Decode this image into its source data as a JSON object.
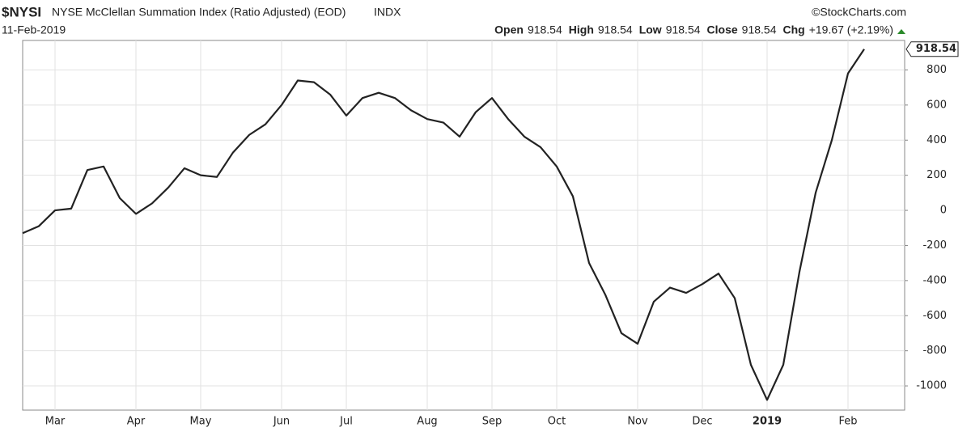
{
  "chart_data": {
    "type": "line",
    "symbol": "$NYSI",
    "title": "NYSE McClellan Summation Index (Ratio Adjusted) (EOD)",
    "exchange": "INDX",
    "credit": "©StockCharts.com",
    "date": "11-Feb-2019",
    "quote": [
      {
        "label": "Open",
        "value": 918.54
      },
      {
        "label": "High",
        "value": 918.54
      },
      {
        "label": "Low",
        "value": 918.54
      },
      {
        "label": "Close",
        "value": 918.54
      },
      {
        "label": "Chg",
        "value": "+19.67 (+2.19%)"
      }
    ],
    "categories": [
      null,
      null,
      "Mar",
      null,
      null,
      null,
      null,
      "Apr",
      null,
      null,
      null,
      "May",
      null,
      null,
      null,
      null,
      "Jun",
      null,
      null,
      null,
      "Jul",
      null,
      null,
      null,
      null,
      "Aug",
      null,
      null,
      null,
      "Sep",
      null,
      null,
      null,
      "Oct",
      null,
      null,
      null,
      null,
      "Nov",
      null,
      null,
      null,
      "Dec",
      null,
      null,
      null,
      "2019",
      null,
      null,
      null,
      null,
      "Feb",
      null
    ],
    "values": [
      -130,
      -90,
      0,
      10,
      230,
      250,
      70,
      -20,
      40,
      130,
      240,
      200,
      190,
      330,
      430,
      490,
      600,
      740,
      730,
      660,
      540,
      640,
      670,
      640,
      570,
      520,
      500,
      420,
      560,
      640,
      520,
      420,
      360,
      250,
      80,
      -300,
      -480,
      -700,
      -760,
      -520,
      -440,
      -470,
      -420,
      -360,
      -500,
      -880,
      -1080,
      -880,
      -350,
      100,
      400,
      780,
      918.54
    ],
    "color": "#222222",
    "ylim": [
      -1138,
      968
    ],
    "yticks": [
      -1000,
      -800,
      -600,
      -400,
      -200,
      0,
      200,
      400,
      600,
      800
    ],
    "grid": true
  }
}
